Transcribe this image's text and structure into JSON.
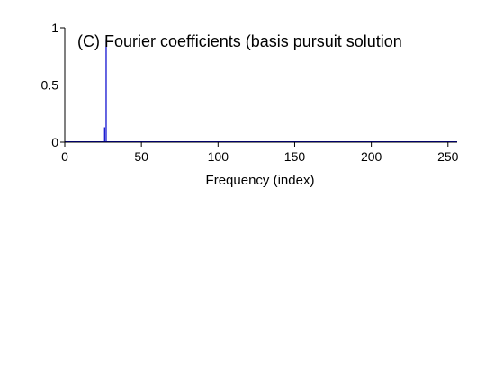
{
  "chart_data": {
    "type": "bar",
    "title": "(C) Fourier coefficients (basis pursuit solution",
    "xlabel": "Frequency (index)",
    "ylabel": "",
    "xlim": [
      0,
      256
    ],
    "ylim": [
      0,
      1
    ],
    "xticks": [
      0,
      50,
      100,
      150,
      200,
      250
    ],
    "xtick_labels": [
      "0",
      "50",
      "100",
      "150",
      "200",
      "250"
    ],
    "yticks": [
      0,
      0.5,
      1
    ],
    "ytick_labels": [
      "0",
      "0.5",
      "1"
    ],
    "grid": false,
    "legend": "none",
    "series": [
      {
        "color": "#0000cc",
        "x": [
          26,
          27
        ],
        "y": [
          0.13,
          0.9
        ]
      }
    ]
  }
}
